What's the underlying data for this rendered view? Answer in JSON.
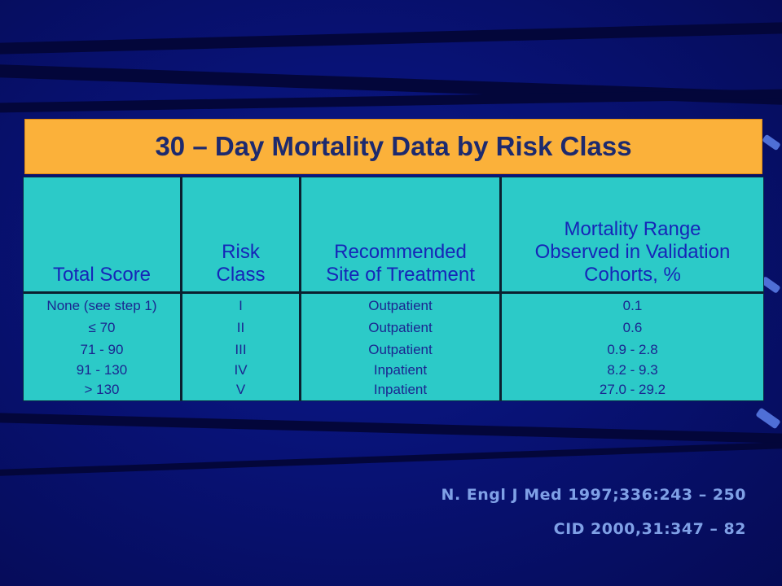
{
  "slide": {
    "title": "30 – Day Mortality Data by Risk Class",
    "table": {
      "headers": [
        [
          "Total Score"
        ],
        [
          "Risk",
          "Class"
        ],
        [
          "Recommended",
          "Site of Treatment"
        ],
        [
          "Mortality Range",
          "Observed in Validation",
          "Cohorts, %"
        ]
      ],
      "rows": [
        [
          "None (see step 1)",
          "I",
          "Outpatient",
          "0.1"
        ],
        [
          "≤ 70",
          "II",
          "Outpatient",
          "0.6"
        ],
        [
          "71 - 90",
          "III",
          "Outpatient",
          "0.9 - 2.8"
        ],
        [
          "91 - 130",
          "IV",
          "Inpatient",
          "8.2 - 9.3"
        ],
        [
          "> 130",
          "V",
          "Inpatient",
          "27.0 - 29.2"
        ]
      ]
    },
    "references": [
      "N. Engl J Med 1997;336:243 – 250",
      "CID 2000,31:347 – 82"
    ],
    "colors": {
      "background": "#081275",
      "title_bar": "#fbb13a",
      "title_text": "#1d2a6e",
      "table_fill": "#2ccac8",
      "header_text": "#1626b8",
      "reference_text": "#7fa0e6"
    }
  }
}
